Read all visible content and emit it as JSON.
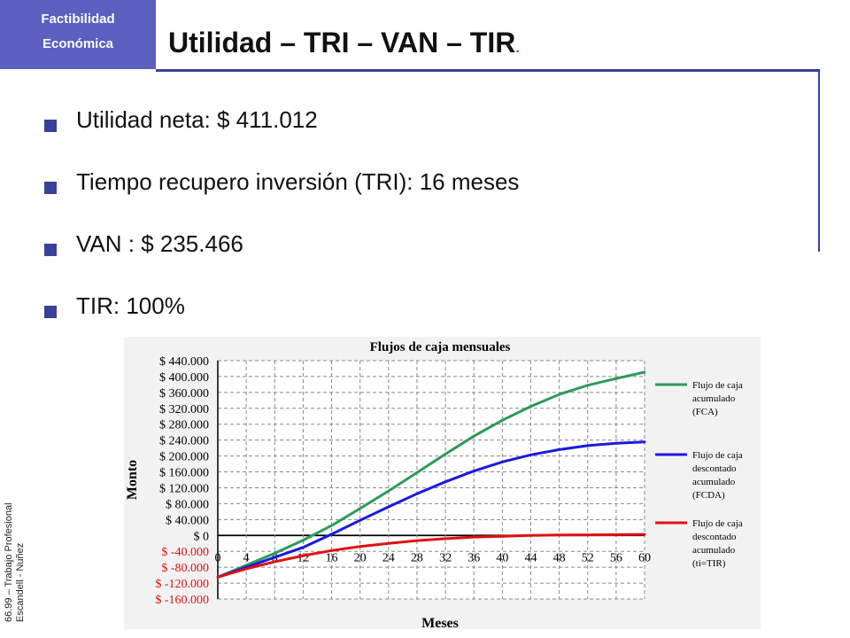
{
  "header": {
    "tag_line1": "Factibilidad",
    "tag_line2": "Económica",
    "title": "Utilidad – TRI – VAN – TIR",
    "title_dot": "."
  },
  "bullets": [
    "Utilidad neta: $ 411.012",
    "Tiempo recupero inversión (TRI): 16 meses",
    "VAN : $ 235.466",
    "TIR: 100%"
  ],
  "footer": {
    "line1": "66.99 – Trabajo Profesional",
    "line2": "Escandell - Nuñez"
  },
  "colors": {
    "accent": "#5a5fc0",
    "line": "#3a3f9a",
    "fca": "#2e9a5a",
    "fcda": "#1a1ae0",
    "tir": "#e01010"
  },
  "chart_data": {
    "type": "line",
    "title": "Flujos de caja mensuales",
    "xlabel": "Meses",
    "ylabel": "Monto",
    "xlim": [
      0,
      60
    ],
    "ylim": [
      -160000,
      440000
    ],
    "x_ticks": [
      "0",
      "4",
      "8",
      "12",
      "16",
      "20",
      "24",
      "28",
      "32",
      "36",
      "40",
      "44",
      "48",
      "52",
      "56",
      "60"
    ],
    "y_ticks": [
      {
        "value": 440000,
        "label": "$ 440.000"
      },
      {
        "value": 400000,
        "label": "$ 400.000"
      },
      {
        "value": 360000,
        "label": "$ 360.000"
      },
      {
        "value": 320000,
        "label": "$ 320.000"
      },
      {
        "value": 280000,
        "label": "$ 280.000"
      },
      {
        "value": 240000,
        "label": "$ 240.000"
      },
      {
        "value": 200000,
        "label": "$ 200.000"
      },
      {
        "value": 160000,
        "label": "$ 160.000"
      },
      {
        "value": 120000,
        "label": "$ 120.000"
      },
      {
        "value": 80000,
        "label": "$ 80.000"
      },
      {
        "value": 40000,
        "label": "$ 40.000"
      },
      {
        "value": 0,
        "label": "$ 0"
      },
      {
        "value": -40000,
        "label": "$ -40.000"
      },
      {
        "value": -80000,
        "label": "$ -80.000"
      },
      {
        "value": -120000,
        "label": "$ -120.000"
      },
      {
        "value": -160000,
        "label": "$ -160.000"
      }
    ],
    "grid": true,
    "legend_position": "right",
    "x": [
      0,
      4,
      8,
      12,
      16,
      20,
      24,
      28,
      32,
      36,
      40,
      44,
      48,
      52,
      56,
      60
    ],
    "series": [
      {
        "name": "Flujo de caja acumulado (FCA)",
        "legend_lines": [
          "Flujo de caja",
          "acumulado",
          "(FCA)"
        ],
        "color": "#2e9a5a",
        "values": [
          -105000,
          -75000,
          -45000,
          -12000,
          25000,
          68000,
          112000,
          158000,
          205000,
          250000,
          290000,
          325000,
          355000,
          378000,
          395000,
          411012
        ]
      },
      {
        "name": "Flujo de caja descontado acumulado (FCDA)",
        "legend_lines": [
          "Flujo de caja",
          "descontado",
          "acumulado",
          "(FCDA)"
        ],
        "color": "#1a1ae0",
        "values": [
          -105000,
          -80000,
          -55000,
          -30000,
          3000,
          38000,
          72000,
          105000,
          135000,
          162000,
          185000,
          203000,
          216000,
          226000,
          232000,
          235466
        ]
      },
      {
        "name": "Flujo de caja descontado acumulado (ti=TIR)",
        "legend_lines": [
          "Flujo de caja",
          "descontado",
          "acumulado",
          "(ti=TIR)"
        ],
        "color": "#e01010",
        "values": [
          -105000,
          -84000,
          -66000,
          -51000,
          -38000,
          -28000,
          -20000,
          -13000,
          -8000,
          -4000,
          -2000,
          0,
          1000,
          1500,
          2000,
          2500
        ]
      }
    ]
  }
}
